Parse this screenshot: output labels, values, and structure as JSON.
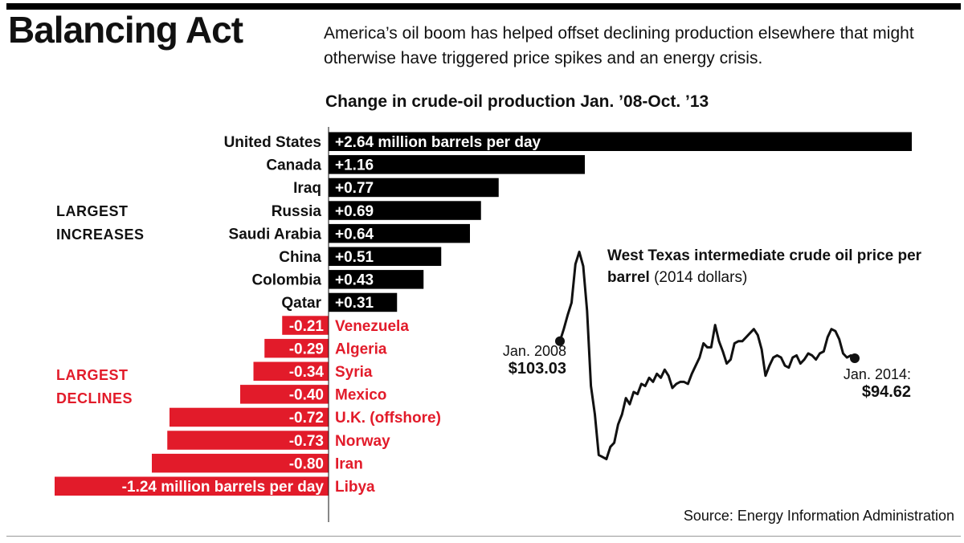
{
  "header": {
    "title": "Balancing Act",
    "subtitle": "America’s oil boom has helped offset declining production elsewhere that might otherwise have triggered price spikes and an energy crisis."
  },
  "colors": {
    "increase": "#000000",
    "decline": "#e21b2a",
    "text_dark": "#111111"
  },
  "groups": {
    "increases": "LARGEST\nINCREASES",
    "declines": "LARGEST\nDECLINES"
  },
  "chart_data": [
    {
      "type": "bar",
      "orientation": "horizontal",
      "title": "Change in crude-oil production Jan. ’08-Oct. ’13",
      "series": [
        {
          "categories": [
            "United States",
            "Canada",
            "Iraq",
            "Russia",
            "Saudi Arabia",
            "China",
            "Colombia",
            "Qatar",
            "Venezuela",
            "Algeria",
            "Syria",
            "Mexico",
            "U.K. (offshore)",
            "Norway",
            "Iran",
            "Libya"
          ],
          "values": [
            2.64,
            1.16,
            0.77,
            0.69,
            0.64,
            0.51,
            0.43,
            0.31,
            -0.21,
            -0.29,
            -0.34,
            -0.4,
            -0.72,
            -0.73,
            -0.8,
            -1.24
          ],
          "labels": [
            "+2.64 million barrels per day",
            "+1.16",
            "+0.77",
            "+0.69",
            "+0.64",
            "+0.51",
            "+0.43",
            "+0.31",
            "-0.21",
            "-0.29",
            "-0.34",
            "-0.40",
            "-0.72",
            "-0.73",
            "-0.80",
            "-1.24 million barrels per day"
          ]
        }
      ]
    },
    {
      "type": "line",
      "title": "West Texas intermediate crude oil price per barrel",
      "unit_note": "(2014 dollars)",
      "x_start": "Jan. 2008",
      "x_end": "Jan. 2014:",
      "start_value_label": "$103.03",
      "end_value_label": "$94.62",
      "start_value": 103.03,
      "end_value": 94.62,
      "y_peak_approx": 150,
      "y_trough_approx": 44,
      "values": [
        103.03,
        109,
        116,
        122,
        141,
        147,
        140,
        118,
        81,
        67,
        47,
        46,
        45,
        51,
        53,
        62,
        67,
        75,
        72,
        78,
        77,
        82,
        81,
        85,
        83,
        87,
        85,
        89,
        86,
        80,
        82,
        83,
        83,
        82,
        87,
        91,
        95,
        102,
        100,
        100,
        111,
        103,
        98,
        92,
        94,
        102,
        103,
        103,
        105,
        107,
        109,
        106,
        99,
        86,
        91,
        95,
        96,
        95,
        91,
        90,
        95,
        96,
        92,
        94,
        97,
        96,
        94,
        97,
        98,
        105,
        109,
        108,
        104,
        97,
        95,
        96,
        94.62
      ]
    }
  ],
  "source": "Source: Energy Information Administration"
}
